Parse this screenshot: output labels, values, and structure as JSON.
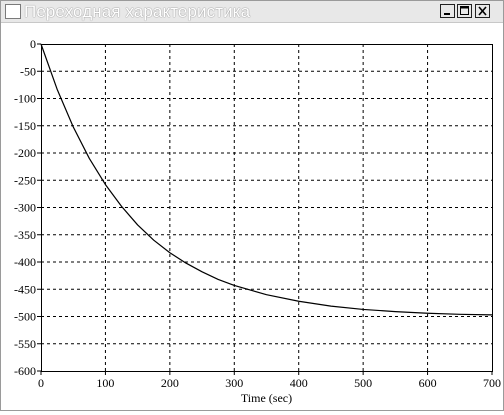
{
  "window": {
    "title": "Переходная характеристика",
    "buttons": {
      "minimize": "minimize-icon",
      "maximize": "maximize-icon",
      "close": "close-icon"
    }
  },
  "colors": {
    "curve": "#000000",
    "grid": "#000000",
    "titlebar": "#e8e8e8"
  },
  "chart_data": {
    "type": "line",
    "title": "",
    "xlabel": "Time (sec)",
    "ylabel": "",
    "xlim": [
      0,
      700
    ],
    "ylim": [
      -600,
      0
    ],
    "grid": true,
    "grid_style": "dashed",
    "xticks": [
      0,
      100,
      200,
      300,
      400,
      500,
      600,
      700
    ],
    "yticks": [
      0,
      -50,
      -100,
      -150,
      -200,
      -250,
      -300,
      -350,
      -400,
      -450,
      -500,
      -550,
      -600
    ],
    "series": [
      {
        "x": [
          0,
          25,
          50,
          75,
          100,
          125,
          150,
          175,
          200,
          225,
          250,
          275,
          300,
          350,
          400,
          450,
          500,
          550,
          600,
          650,
          700
        ],
        "y": [
          0,
          -83,
          -152,
          -210,
          -258,
          -298,
          -332,
          -360,
          -383,
          -402,
          -418,
          -432,
          -443,
          -460,
          -472,
          -481,
          -487,
          -491,
          -494,
          -496,
          -497
        ]
      }
    ]
  }
}
